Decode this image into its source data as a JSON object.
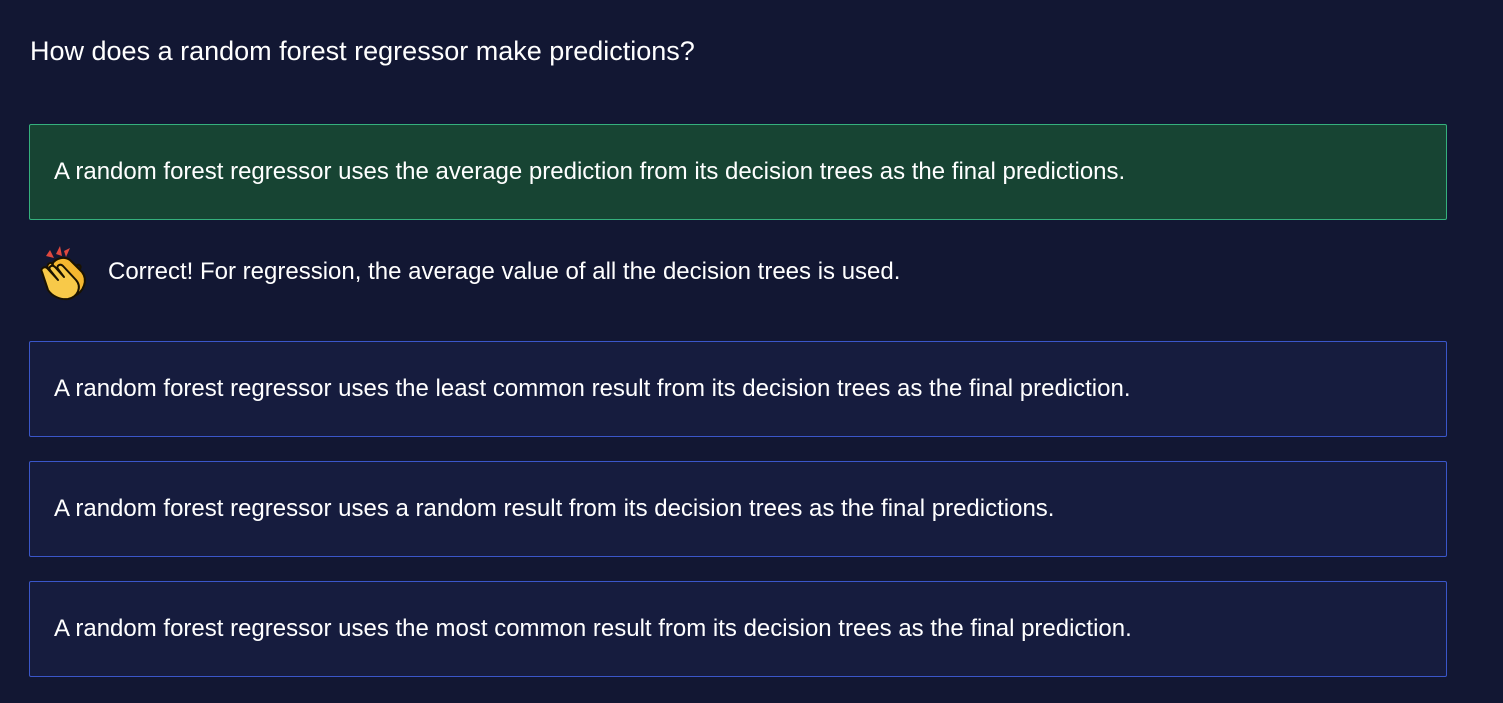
{
  "question": "How does a random forest regressor make predictions?",
  "options": [
    {
      "label": "A random forest regressor uses the average prediction from its decision trees as the final predictions.",
      "state": "correct"
    },
    {
      "label": "A random forest regressor uses the least common result from its decision trees as the final prediction.",
      "state": "default"
    },
    {
      "label": "A random forest regressor uses a random result from its decision trees as the final predictions.",
      "state": "default"
    },
    {
      "label": "A random forest regressor uses the most common result from its decision trees as the final prediction.",
      "state": "default"
    }
  ],
  "feedback": {
    "icon": "clapping-hands-icon",
    "text": "Correct! For regression, the average value of all the decision trees is used."
  },
  "colors": {
    "background": "#121733",
    "option_border": "#3a56c9",
    "correct_background": "#174433",
    "correct_border": "#35b07d"
  }
}
